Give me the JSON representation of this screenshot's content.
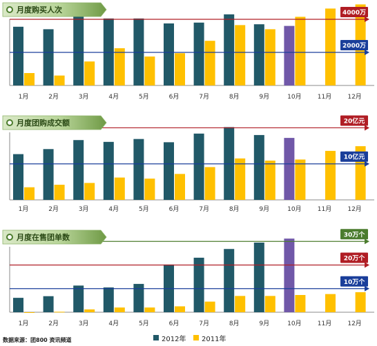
{
  "source": "数据来源：团800 资讯频道",
  "legend": [
    {
      "label": "2012年",
      "color": "#215968"
    },
    {
      "label": "2011年",
      "color": "#ffc000"
    }
  ],
  "colors": {
    "series_2012": "#215968",
    "series_2011": "#ffc000",
    "highlight": "#7058a8",
    "header_dark": "#4c7c2c",
    "header_light": "#d6e6c3",
    "line_red": "#b01d24",
    "line_blue": "#1a3e9a",
    "line_green": "#4b7c2e"
  },
  "chart_data": [
    {
      "type": "bar",
      "title": "月度购买人次",
      "categories": [
        "1月",
        "2月",
        "3月",
        "4月",
        "5月",
        "6月",
        "7月",
        "8月",
        "9月",
        "10月",
        "11月",
        "12月"
      ],
      "series": [
        {
          "name": "2012年",
          "values": [
            3550,
            3400,
            4350,
            4050,
            4050,
            3750,
            3800,
            4300,
            3700,
            3600,
            null,
            null
          ]
        },
        {
          "name": "2011年",
          "values": [
            750,
            600,
            1450,
            2250,
            1750,
            1950,
            2700,
            3650,
            3400,
            4150,
            4650,
            4900
          ]
        }
      ],
      "highlight_index": 9,
      "ylim": [
        0,
        5000
      ],
      "reference_lines": [
        {
          "label": "4000万",
          "value": 4000,
          "color": "#b01d24"
        },
        {
          "label": "2000万",
          "value": 2000,
          "color": "#1a3e9a"
        }
      ]
    },
    {
      "type": "bar",
      "title": "月度团购成交额",
      "categories": [
        "1月",
        "2月",
        "3月",
        "4月",
        "5月",
        "6月",
        "7月",
        "8月",
        "9月",
        "10月",
        "11月",
        "12月"
      ],
      "series": [
        {
          "name": "2012年",
          "values": [
            12.7,
            14.1,
            16.6,
            16.1,
            16.9,
            16.0,
            18.4,
            20.2,
            18.0,
            17.2,
            null,
            null
          ]
        },
        {
          "name": "2011年",
          "values": [
            3.5,
            4.2,
            4.7,
            6.2,
            5.9,
            7.2,
            9.1,
            11.5,
            10.9,
            11.2,
            13.6,
            14.9
          ]
        }
      ],
      "highlight_index": 9,
      "ylim": [
        0,
        22
      ],
      "reference_lines": [
        {
          "label": "20亿元",
          "value": 20,
          "color": "#b01d24"
        },
        {
          "label": "10亿元",
          "value": 10,
          "color": "#1a3e9a"
        }
      ]
    },
    {
      "type": "bar",
      "title": "月度在售团单数",
      "categories": [
        "1月",
        "2月",
        "3月",
        "4月",
        "5月",
        "6月",
        "7月",
        "8月",
        "9月",
        "10月",
        "11月",
        "12月"
      ],
      "series": [
        {
          "name": "2012年",
          "values": [
            6.1,
            6.8,
            11.3,
            10.5,
            12.0,
            20.2,
            23.1,
            26.8,
            29.5,
            31.2,
            null,
            null
          ]
        },
        {
          "name": "2011年",
          "values": [
            0,
            0.2,
            1.2,
            2.0,
            2.0,
            2.5,
            4.5,
            6.9,
            6.9,
            7.3,
            7.7,
            8.5
          ]
        }
      ],
      "highlight_index": 9,
      "ylim": [
        0,
        33
      ],
      "reference_lines": [
        {
          "label": "30万个",
          "value": 30,
          "color": "#4b7c2e"
        },
        {
          "label": "20万个",
          "value": 20,
          "color": "#b01d24"
        },
        {
          "label": "10万个",
          "value": 10,
          "color": "#1a3e9a"
        }
      ]
    }
  ]
}
